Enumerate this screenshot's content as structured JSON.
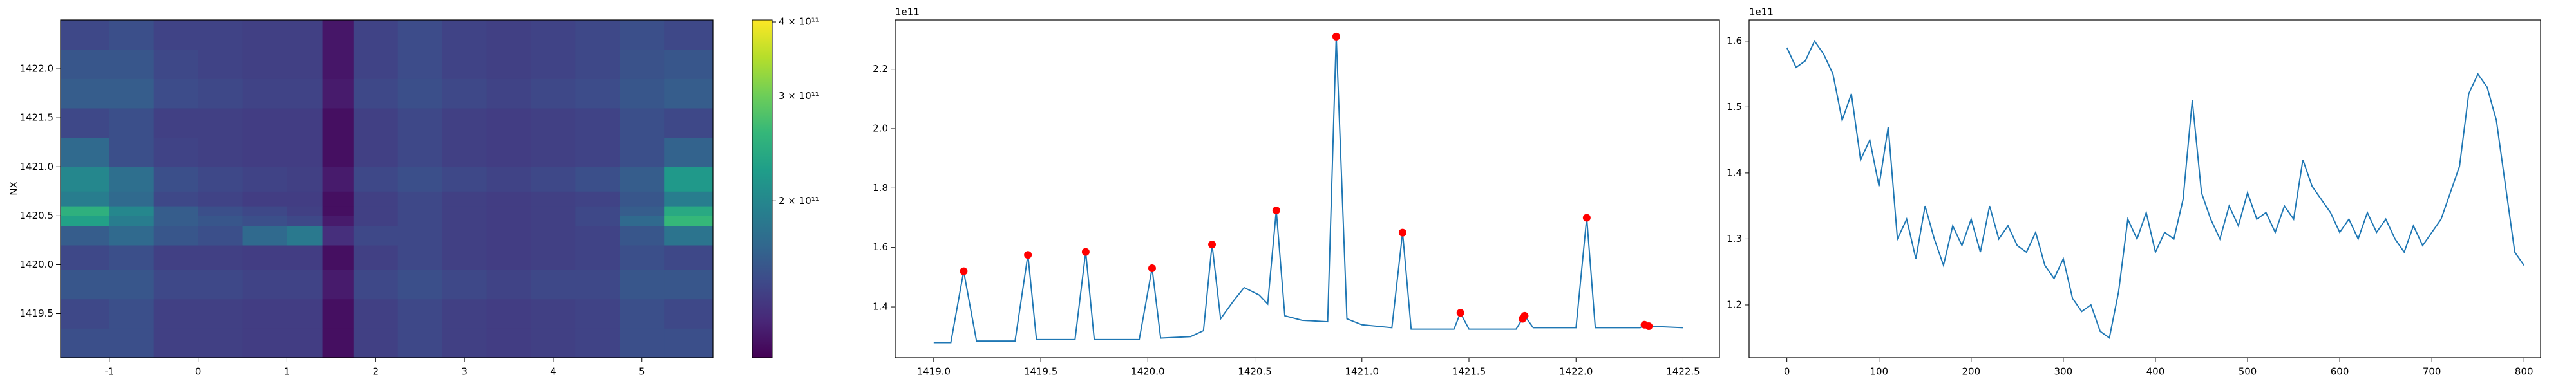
{
  "chart_data": [
    {
      "type": "heatmap",
      "y_label": "NX",
      "x_edges": [
        -1.55,
        -1.0,
        -0.5,
        0,
        0.5,
        1.0,
        1.4,
        1.75,
        2.25,
        2.75,
        3.25,
        3.75,
        4.25,
        4.75,
        5.25,
        5.8
      ],
      "y_edges": [
        1419.05,
        1419.35,
        1419.65,
        1419.95,
        1420.2,
        1420.4,
        1420.5,
        1420.6,
        1420.75,
        1421.0,
        1421.3,
        1421.6,
        1421.9,
        1422.2,
        1422.5
      ],
      "z": [
        [
          150000000000.0,
          150000000000.0,
          140000000000.0,
          140000000000.0,
          138000000000.0,
          138000000000.0,
          115000000000.0,
          140000000000.0,
          145000000000.0,
          140000000000.0,
          138000000000.0,
          140000000000.0,
          142000000000.0,
          150000000000.0,
          150000000000.0
        ],
        [
          145000000000.0,
          150000000000.0,
          140000000000.0,
          140000000000.0,
          138000000000.0,
          138000000000.0,
          115000000000.0,
          140000000000.0,
          145000000000.0,
          140000000000.0,
          138000000000.0,
          140000000000.0,
          142000000000.0,
          150000000000.0,
          145000000000.0
        ],
        [
          155000000000.0,
          155000000000.0,
          145000000000.0,
          145000000000.0,
          142000000000.0,
          142000000000.0,
          120000000000.0,
          145000000000.0,
          150000000000.0,
          145000000000.0,
          142000000000.0,
          145000000000.0,
          145000000000.0,
          155000000000.0,
          155000000000.0
        ],
        [
          145000000000.0,
          150000000000.0,
          140000000000.0,
          140000000000.0,
          138000000000.0,
          138000000000.0,
          115000000000.0,
          140000000000.0,
          145000000000.0,
          140000000000.0,
          138000000000.0,
          140000000000.0,
          142000000000.0,
          150000000000.0,
          145000000000.0
        ],
        [
          160000000000.0,
          170000000000.0,
          155000000000.0,
          150000000000.0,
          170000000000.0,
          185000000000.0,
          130000000000.0,
          145000000000.0,
          145000000000.0,
          140000000000.0,
          138000000000.0,
          140000000000.0,
          142000000000.0,
          155000000000.0,
          180000000000.0
        ],
        [
          230000000000.0,
          190000000000.0,
          160000000000.0,
          155000000000.0,
          150000000000.0,
          145000000000.0,
          120000000000.0,
          140000000000.0,
          145000000000.0,
          140000000000.0,
          138000000000.0,
          140000000000.0,
          145000000000.0,
          170000000000.0,
          260000000000.0
        ],
        [
          250000000000.0,
          200000000000.0,
          160000000000.0,
          150000000000.0,
          145000000000.0,
          140000000000.0,
          115000000000.0,
          140000000000.0,
          145000000000.0,
          140000000000.0,
          138000000000.0,
          140000000000.0,
          145000000000.0,
          160000000000.0,
          240000000000.0
        ],
        [
          190000000000.0,
          170000000000.0,
          145000000000.0,
          142000000000.0,
          138000000000.0,
          138000000000.0,
          115000000000.0,
          140000000000.0,
          145000000000.0,
          140000000000.0,
          138000000000.0,
          140000000000.0,
          142000000000.0,
          155000000000.0,
          190000000000.0
        ],
        [
          200000000000.0,
          175000000000.0,
          150000000000.0,
          145000000000.0,
          142000000000.0,
          140000000000.0,
          120000000000.0,
          145000000000.0,
          150000000000.0,
          145000000000.0,
          142000000000.0,
          145000000000.0,
          150000000000.0,
          160000000000.0,
          220000000000.0
        ],
        [
          170000000000.0,
          150000000000.0,
          142000000000.0,
          140000000000.0,
          138000000000.0,
          138000000000.0,
          115000000000.0,
          140000000000.0,
          145000000000.0,
          140000000000.0,
          138000000000.0,
          140000000000.0,
          142000000000.0,
          150000000000.0,
          165000000000.0
        ],
        [
          145000000000.0,
          150000000000.0,
          140000000000.0,
          140000000000.0,
          138000000000.0,
          138000000000.0,
          115000000000.0,
          140000000000.0,
          145000000000.0,
          140000000000.0,
          138000000000.0,
          140000000000.0,
          142000000000.0,
          150000000000.0,
          145000000000.0
        ],
        [
          160000000000.0,
          160000000000.0,
          148000000000.0,
          145000000000.0,
          142000000000.0,
          142000000000.0,
          120000000000.0,
          145000000000.0,
          150000000000.0,
          145000000000.0,
          142000000000.0,
          145000000000.0,
          148000000000.0,
          155000000000.0,
          160000000000.0
        ],
        [
          155000000000.0,
          155000000000.0,
          145000000000.0,
          142000000000.0,
          140000000000.0,
          140000000000.0,
          118000000000.0,
          142000000000.0,
          148000000000.0,
          142000000000.0,
          140000000000.0,
          142000000000.0,
          145000000000.0,
          152000000000.0,
          155000000000.0
        ],
        [
          145000000000.0,
          150000000000.0,
          142000000000.0,
          142000000000.0,
          140000000000.0,
          140000000000.0,
          118000000000.0,
          142000000000.0,
          148000000000.0,
          142000000000.0,
          140000000000.0,
          142000000000.0,
          145000000000.0,
          150000000000.0,
          145000000000.0
        ]
      ],
      "xlim": [
        -1.55,
        5.8
      ],
      "ylim": [
        1419.05,
        1422.5
      ],
      "xticks": [
        -1,
        0,
        1,
        2,
        3,
        4,
        5
      ],
      "yticks": [
        1419.5,
        {
          "value": 1420,
          "label": "1420.0"
        },
        1420.5,
        {
          "value": 1421,
          "label": "1421.0"
        },
        1421.5,
        {
          "value": 1422,
          "label": "1422.0"
        }
      ],
      "colormap": "viridis",
      "colorbar": {
        "scale": "log",
        "lim": [
          109000000000.0,
          403000000000.0
        ],
        "ticks": [
          {
            "value": 200000000000.0,
            "label": "2 × 10¹¹"
          },
          {
            "value": 300000000000.0,
            "label": "3 × 10¹¹"
          },
          {
            "value": 400000000000.0,
            "label": "4 × 10¹¹"
          }
        ]
      }
    },
    {
      "type": "line",
      "offset_label": "1e11",
      "color": "#1f77b4",
      "x": [
        1419.0,
        1419.08,
        1419.14,
        1419.2,
        1419.38,
        1419.44,
        1419.48,
        1419.66,
        1419.71,
        1419.75,
        1419.96,
        1420.02,
        1420.06,
        1420.2,
        1420.26,
        1420.3,
        1420.34,
        1420.4,
        1420.45,
        1420.52,
        1420.56,
        1420.6,
        1420.64,
        1420.72,
        1420.84,
        1420.88,
        1420.93,
        1421.0,
        1421.14,
        1421.19,
        1421.23,
        1421.43,
        1421.46,
        1421.5,
        1421.72,
        1421.75,
        1421.76,
        1421.8,
        1422.0,
        1422.05,
        1422.09,
        1422.3,
        1422.32,
        1422.34,
        1422.5
      ],
      "values": [
        1.28,
        1.28,
        1.52,
        1.285,
        1.285,
        1.575,
        1.29,
        1.29,
        1.585,
        1.29,
        1.29,
        1.53,
        1.295,
        1.3,
        1.32,
        1.61,
        1.36,
        1.42,
        1.465,
        1.44,
        1.41,
        1.725,
        1.37,
        1.355,
        1.35,
        2.31,
        1.36,
        1.34,
        1.33,
        1.65,
        1.325,
        1.325,
        1.38,
        1.325,
        1.325,
        1.36,
        1.37,
        1.33,
        1.33,
        1.7,
        1.33,
        1.33,
        1.34,
        1.335,
        1.33
      ],
      "markers": {
        "color": "red",
        "x": [
          1419.14,
          1419.44,
          1419.71,
          1420.02,
          1420.3,
          1420.6,
          1420.88,
          1421.19,
          1421.46,
          1421.75,
          1421.76,
          1422.05,
          1422.32,
          1422.34
        ],
        "values": [
          1.52,
          1.575,
          1.585,
          1.53,
          1.61,
          1.725,
          2.31,
          1.65,
          1.38,
          1.36,
          1.37,
          1.7,
          1.34,
          1.335
        ]
      },
      "xlim": [
        1418.82,
        1422.67
      ],
      "ylim": [
        1.229,
        2.366
      ],
      "xticks": [
        {
          "value": 1419,
          "label": "1419.0"
        },
        1419.5,
        {
          "value": 1420,
          "label": "1420.0"
        },
        1420.5,
        {
          "value": 1421,
          "label": "1421.0"
        },
        1421.5,
        {
          "value": 1422,
          "label": "1422.0"
        },
        1422.5
      ],
      "yticks": [
        1.4,
        1.6,
        1.8,
        {
          "value": 2,
          "label": "2.0"
        },
        2.2
      ]
    },
    {
      "type": "line",
      "offset_label": "1e11",
      "color": "#1f77b4",
      "x": [
        0,
        10,
        20,
        30,
        40,
        50,
        60,
        70,
        80,
        90,
        100,
        110,
        120,
        130,
        140,
        150,
        160,
        170,
        180,
        190,
        200,
        210,
        220,
        230,
        240,
        250,
        260,
        270,
        280,
        290,
        300,
        310,
        320,
        330,
        340,
        350,
        360,
        370,
        380,
        390,
        400,
        410,
        420,
        430,
        440,
        450,
        460,
        470,
        480,
        490,
        500,
        510,
        520,
        530,
        540,
        550,
        560,
        570,
        580,
        590,
        600,
        610,
        620,
        630,
        640,
        650,
        660,
        670,
        680,
        690,
        700,
        710,
        720,
        730,
        740,
        750,
        760,
        770,
        780,
        790,
        800
      ],
      "values": [
        1.59,
        1.56,
        1.57,
        1.6,
        1.58,
        1.55,
        1.48,
        1.52,
        1.42,
        1.45,
        1.38,
        1.47,
        1.3,
        1.33,
        1.27,
        1.35,
        1.3,
        1.26,
        1.32,
        1.29,
        1.33,
        1.28,
        1.35,
        1.3,
        1.32,
        1.29,
        1.28,
        1.31,
        1.26,
        1.24,
        1.27,
        1.21,
        1.19,
        1.2,
        1.16,
        1.15,
        1.22,
        1.33,
        1.3,
        1.34,
        1.28,
        1.31,
        1.3,
        1.36,
        1.51,
        1.37,
        1.33,
        1.3,
        1.35,
        1.32,
        1.37,
        1.33,
        1.34,
        1.31,
        1.35,
        1.33,
        1.42,
        1.38,
        1.36,
        1.34,
        1.31,
        1.33,
        1.3,
        1.34,
        1.31,
        1.33,
        1.3,
        1.28,
        1.32,
        1.29,
        1.31,
        1.33,
        1.37,
        1.41,
        1.52,
        1.55,
        1.53,
        1.48,
        1.38,
        1.28,
        1.26
      ],
      "xlim": [
        -41,
        818
      ],
      "ylim": [
        1.12,
        1.632
      ],
      "xticks": [
        0,
        100,
        200,
        300,
        400,
        500,
        600,
        700,
        800
      ],
      "yticks": [
        1.2,
        1.3,
        1.4,
        1.5,
        1.6
      ]
    }
  ]
}
